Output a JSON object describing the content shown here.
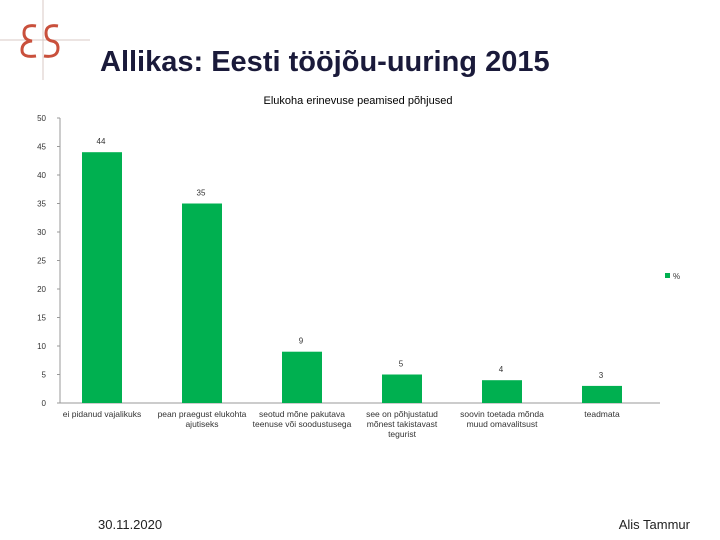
{
  "slide": {
    "title": "Allikas: Eesti tööjõu-uuring 2015",
    "date": "30.11.2020",
    "author": "Alis Tammur"
  },
  "colors": {
    "bar": "#00b050",
    "axis": "#999999",
    "title": "#1a1a3a",
    "logo": "#c9503c"
  },
  "chart_data": {
    "type": "bar",
    "title": "Elukoha erinevuse peamised põhjused",
    "xlabel": "",
    "ylabel": "",
    "ylim": [
      0,
      50
    ],
    "yticks": [
      0,
      5,
      10,
      15,
      20,
      25,
      30,
      35,
      40,
      45,
      50
    ],
    "legend": {
      "position": "right",
      "entries": [
        "%"
      ]
    },
    "categories": [
      "ei pidanud vajalikuks",
      "pean praegust elukohta ajutiseks",
      "seotud mõne pakutava teenuse või soodustusega",
      "see on põhjustatud mõnest takistavast tegurist",
      "soovin toetada mõnda muud omavalitsust",
      "teadmata"
    ],
    "series": [
      {
        "name": "%",
        "values": [
          44,
          35,
          9,
          5,
          4,
          3
        ]
      }
    ]
  }
}
